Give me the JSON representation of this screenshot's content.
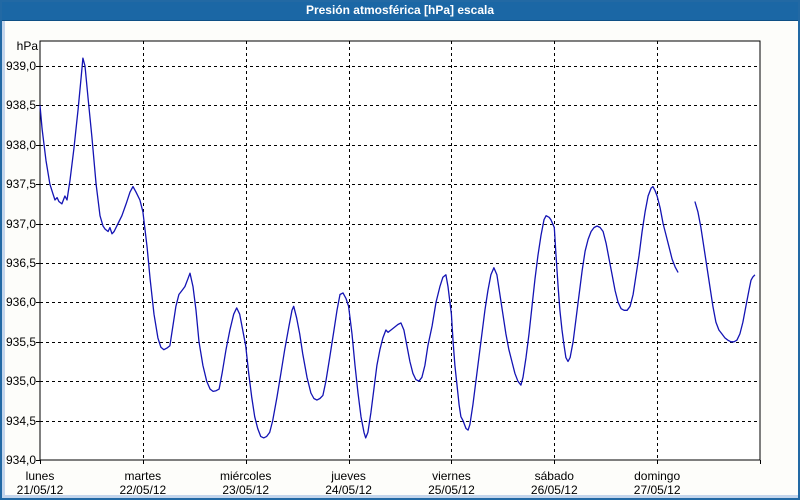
{
  "title": "Presión atmosférica [hPa] escala",
  "colors": {
    "titlebar_bg": "#1b67a5",
    "frame_border": "#2269a4",
    "frame_inner": "#c3d5ec",
    "plot_bg": "#ffffff",
    "grid": "#000000",
    "line": "#1414b4"
  },
  "chart_data": {
    "type": "line",
    "title": "Presión atmosférica [hPa] escala",
    "ylabel": "hPa",
    "xlabel": "",
    "ylim": [
      934.0,
      939.3
    ],
    "grid": true,
    "legend": "none",
    "x_unit": "hours since 21/05/12 00:00 (24 h per day, 7 days)",
    "yticks": [
      {
        "value": 939.0,
        "label": "939,0"
      },
      {
        "value": 938.5,
        "label": "938,5"
      },
      {
        "value": 938.0,
        "label": "938,0"
      },
      {
        "value": 937.5,
        "label": "937,5"
      },
      {
        "value": 937.0,
        "label": "937,0"
      },
      {
        "value": 936.5,
        "label": "936,5"
      },
      {
        "value": 936.0,
        "label": "936,0"
      },
      {
        "value": 935.5,
        "label": "935,5"
      },
      {
        "value": 935.0,
        "label": "935,0"
      },
      {
        "value": 934.5,
        "label": "934,5"
      },
      {
        "value": 934.0,
        "label": "934,0"
      }
    ],
    "days": [
      {
        "name": "lunes",
        "date": "21/05/12"
      },
      {
        "name": "martes",
        "date": "22/05/12"
      },
      {
        "name": "miércoles",
        "date": "23/05/12"
      },
      {
        "name": "jueves",
        "date": "24/05/12"
      },
      {
        "name": "viernes",
        "date": "25/05/12"
      },
      {
        "name": "sábado",
        "date": "26/05/12"
      },
      {
        "name": "domingo",
        "date": "27/05/12"
      }
    ],
    "series": [
      {
        "name": "Presión atmosférica",
        "color": "#1414b4",
        "segments": [
          [
            [
              0,
              938.5
            ],
            [
              0.5,
              938.2
            ],
            [
              1.4,
              937.8
            ],
            [
              2.3,
              937.5
            ],
            [
              3,
              937.38
            ],
            [
              3.5,
              937.3
            ],
            [
              4,
              937.33
            ],
            [
              4.4,
              937.28
            ],
            [
              5.1,
              937.25
            ],
            [
              5.8,
              937.35
            ],
            [
              6.3,
              937.3
            ],
            [
              7,
              937.55
            ],
            [
              7.9,
              937.95
            ],
            [
              8.9,
              938.45
            ],
            [
              9.6,
              938.85
            ],
            [
              10,
              939.1
            ],
            [
              10.5,
              939.0
            ],
            [
              11.2,
              938.6
            ],
            [
              12.1,
              938.1
            ],
            [
              13.1,
              937.5
            ],
            [
              14,
              937.1
            ],
            [
              14.7,
              936.97
            ],
            [
              15.2,
              936.93
            ],
            [
              15.9,
              936.9
            ],
            [
              16.3,
              936.95
            ],
            [
              16.8,
              936.87
            ],
            [
              17.3,
              936.9
            ],
            [
              18.2,
              937.0
            ],
            [
              19.1,
              937.1
            ],
            [
              20.1,
              937.25
            ],
            [
              21,
              937.4
            ],
            [
              21.7,
              937.47
            ],
            [
              22.4,
              937.4
            ],
            [
              23.3,
              937.3
            ],
            [
              24,
              937.15
            ],
            [
              25,
              936.7
            ],
            [
              25.7,
              936.3
            ],
            [
              26.6,
              935.85
            ],
            [
              27.5,
              935.55
            ],
            [
              28.2,
              935.43
            ],
            [
              28.9,
              935.4
            ],
            [
              29.6,
              935.42
            ],
            [
              30.3,
              935.45
            ],
            [
              31,
              935.7
            ],
            [
              31.7,
              935.95
            ],
            [
              32.4,
              936.1
            ],
            [
              33.1,
              936.15
            ],
            [
              33.8,
              936.2
            ],
            [
              34.5,
              936.3
            ],
            [
              35,
              936.37
            ],
            [
              35.7,
              936.2
            ],
            [
              36.4,
              935.9
            ],
            [
              37.1,
              935.5
            ],
            [
              38,
              935.2
            ],
            [
              38.9,
              935.0
            ],
            [
              39.7,
              934.9
            ],
            [
              40.4,
              934.87
            ],
            [
              41.1,
              934.88
            ],
            [
              41.8,
              934.9
            ],
            [
              42.5,
              935.1
            ],
            [
              43.4,
              935.4
            ],
            [
              44.3,
              935.65
            ],
            [
              45.2,
              935.85
            ],
            [
              45.9,
              935.93
            ],
            [
              46.6,
              935.85
            ],
            [
              47.3,
              935.65
            ],
            [
              48,
              935.45
            ],
            [
              48.7,
              935.1
            ],
            [
              49.4,
              934.8
            ],
            [
              50.1,
              934.55
            ],
            [
              50.8,
              934.4
            ],
            [
              51.5,
              934.3
            ],
            [
              52.2,
              934.28
            ],
            [
              52.9,
              934.3
            ],
            [
              53.6,
              934.35
            ],
            [
              54.3,
              934.5
            ],
            [
              55.3,
              934.8
            ],
            [
              56.2,
              935.1
            ],
            [
              57.1,
              935.4
            ],
            [
              58.1,
              935.7
            ],
            [
              58.8,
              935.9
            ],
            [
              59.2,
              935.95
            ],
            [
              59.9,
              935.8
            ],
            [
              60.6,
              935.6
            ],
            [
              61.3,
              935.35
            ],
            [
              62.3,
              935.05
            ],
            [
              63.2,
              934.85
            ],
            [
              63.9,
              934.78
            ],
            [
              64.6,
              934.76
            ],
            [
              65.3,
              934.78
            ],
            [
              66,
              934.82
            ],
            [
              66.7,
              935.0
            ],
            [
              67.6,
              935.3
            ],
            [
              68.6,
              935.65
            ],
            [
              69.3,
              935.9
            ],
            [
              70,
              936.1
            ],
            [
              70.7,
              936.12
            ],
            [
              71.4,
              936.05
            ],
            [
              72,
              935.95
            ],
            [
              72.8,
              935.6
            ],
            [
              73.5,
              935.2
            ],
            [
              74.2,
              934.85
            ],
            [
              74.9,
              934.55
            ],
            [
              75.6,
              934.35
            ],
            [
              76,
              934.28
            ],
            [
              76.5,
              934.35
            ],
            [
              77.2,
              934.6
            ],
            [
              77.9,
              934.9
            ],
            [
              78.6,
              935.2
            ],
            [
              79.3,
              935.4
            ],
            [
              80,
              935.55
            ],
            [
              80.7,
              935.65
            ],
            [
              81.2,
              935.62
            ],
            [
              81.9,
              935.65
            ],
            [
              82.6,
              935.68
            ],
            [
              83.5,
              935.72
            ],
            [
              84.2,
              935.74
            ],
            [
              84.9,
              935.65
            ],
            [
              85.6,
              935.45
            ],
            [
              86.3,
              935.25
            ],
            [
              87,
              935.1
            ],
            [
              87.7,
              935.02
            ],
            [
              88.4,
              935.0
            ],
            [
              89.1,
              935.05
            ],
            [
              89.8,
              935.2
            ],
            [
              90.5,
              935.45
            ],
            [
              91.5,
              935.7
            ],
            [
              92.4,
              936.0
            ],
            [
              93.3,
              936.2
            ],
            [
              94,
              936.32
            ],
            [
              94.7,
              936.35
            ],
            [
              95.2,
              936.2
            ],
            [
              96,
              935.85
            ],
            [
              96.4,
              935.5
            ],
            [
              96.8,
              935.2
            ],
            [
              97.3,
              934.95
            ],
            [
              97.8,
              934.7
            ],
            [
              98.2,
              934.55
            ],
            [
              98.7,
              934.5
            ],
            [
              99.4,
              934.4
            ],
            [
              99.9,
              934.38
            ],
            [
              100.3,
              934.45
            ],
            [
              101,
              934.7
            ],
            [
              101.7,
              935.0
            ],
            [
              102.4,
              935.3
            ],
            [
              103.1,
              935.6
            ],
            [
              103.8,
              935.9
            ],
            [
              104.5,
              936.15
            ],
            [
              105.2,
              936.35
            ],
            [
              105.9,
              936.44
            ],
            [
              106.6,
              936.35
            ],
            [
              107.3,
              936.1
            ],
            [
              108,
              935.85
            ],
            [
              108.7,
              935.6
            ],
            [
              109.4,
              935.4
            ],
            [
              110.1,
              935.25
            ],
            [
              110.8,
              935.1
            ],
            [
              111.5,
              935.0
            ],
            [
              112.2,
              934.95
            ],
            [
              112.7,
              935.05
            ],
            [
              113.4,
              935.3
            ],
            [
              114.1,
              935.6
            ],
            [
              114.8,
              935.95
            ],
            [
              115.5,
              936.3
            ],
            [
              116.2,
              936.6
            ],
            [
              116.9,
              936.85
            ],
            [
              117.6,
              937.05
            ],
            [
              118.1,
              937.1
            ],
            [
              118.8,
              937.08
            ],
            [
              119.2,
              937.05
            ],
            [
              120,
              936.95
            ],
            [
              120.4,
              936.6
            ],
            [
              120.9,
              936.2
            ],
            [
              121.3,
              935.9
            ],
            [
              121.8,
              935.65
            ],
            [
              122.3,
              935.45
            ],
            [
              122.7,
              935.3
            ],
            [
              123.2,
              935.25
            ],
            [
              123.7,
              935.3
            ],
            [
              124.4,
              935.5
            ],
            [
              125.1,
              935.8
            ],
            [
              125.8,
              936.1
            ],
            [
              126.5,
              936.4
            ],
            [
              127.2,
              936.65
            ],
            [
              127.9,
              936.8
            ],
            [
              128.6,
              936.9
            ],
            [
              129.3,
              936.95
            ],
            [
              130,
              936.97
            ],
            [
              130.7,
              936.95
            ],
            [
              131.4,
              936.9
            ],
            [
              132.1,
              936.75
            ],
            [
              132.8,
              936.55
            ],
            [
              133.5,
              936.35
            ],
            [
              134.2,
              936.15
            ],
            [
              134.9,
              936.0
            ],
            [
              135.6,
              935.92
            ],
            [
              136.3,
              935.9
            ],
            [
              137,
              935.9
            ],
            [
              137.7,
              935.95
            ],
            [
              138.4,
              936.1
            ],
            [
              139.1,
              936.35
            ],
            [
              139.8,
              936.6
            ],
            [
              140.5,
              936.9
            ],
            [
              141.2,
              937.15
            ],
            [
              141.9,
              937.35
            ],
            [
              142.6,
              937.45
            ],
            [
              143,
              937.47
            ],
            [
              143.5,
              937.42
            ],
            [
              144,
              937.35
            ],
            [
              144.7,
              937.2
            ],
            [
              145.4,
              937.0
            ],
            [
              146.1,
              936.85
            ],
            [
              146.8,
              936.7
            ],
            [
              147.5,
              936.55
            ],
            [
              148.2,
              936.45
            ],
            [
              148.9,
              936.38
            ]
          ],
          [
            [
              152.8,
              937.28
            ],
            [
              153.5,
              937.15
            ],
            [
              154.2,
              936.95
            ],
            [
              154.9,
              936.7
            ],
            [
              155.6,
              936.45
            ],
            [
              156.3,
              936.2
            ],
            [
              157,
              935.95
            ],
            [
              157.7,
              935.75
            ],
            [
              158.4,
              935.65
            ],
            [
              159.1,
              935.6
            ],
            [
              159.8,
              935.55
            ],
            [
              160.5,
              935.52
            ],
            [
              161.2,
              935.5
            ],
            [
              161.9,
              935.5
            ],
            [
              162.6,
              935.52
            ],
            [
              163.3,
              935.6
            ],
            [
              164,
              935.75
            ],
            [
              164.7,
              935.95
            ],
            [
              165.4,
              936.15
            ],
            [
              165.9,
              936.28
            ],
            [
              166.3,
              936.32
            ],
            [
              166.8,
              936.35
            ]
          ]
        ]
      }
    ]
  }
}
